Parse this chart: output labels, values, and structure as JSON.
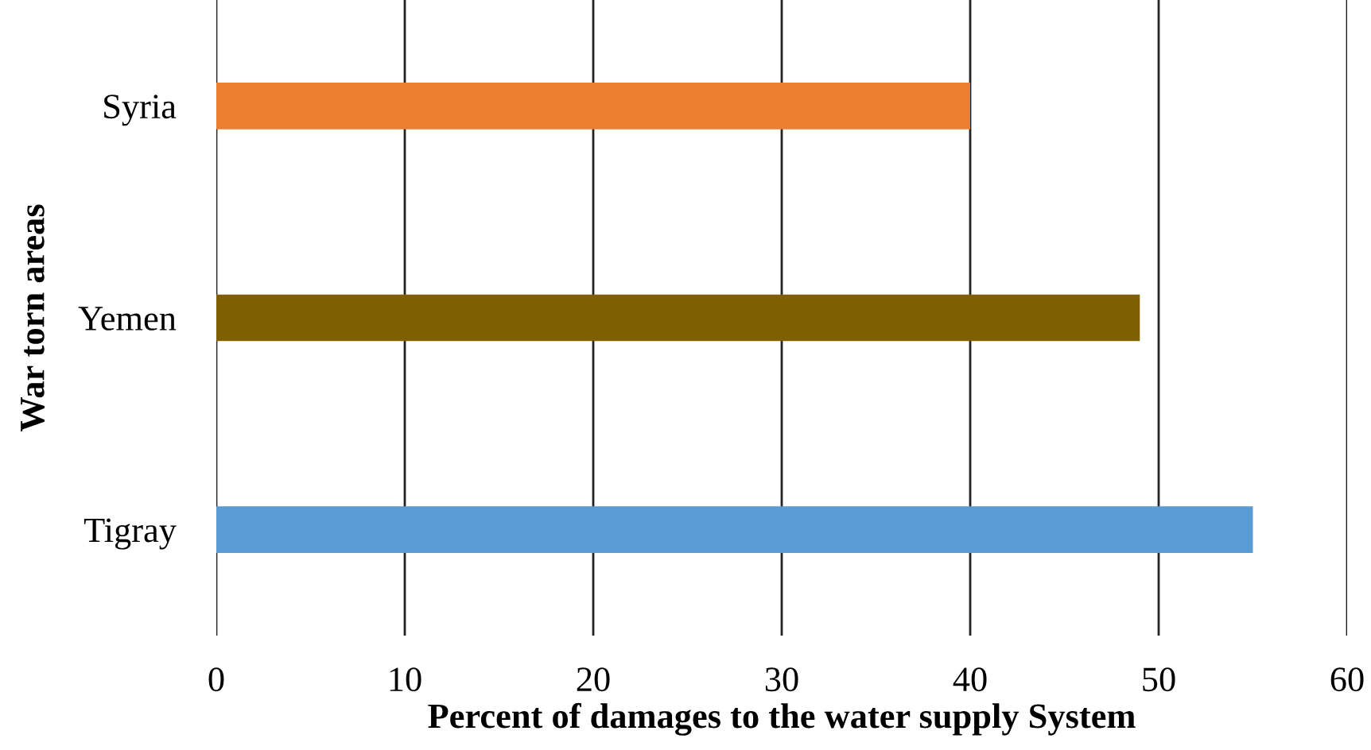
{
  "chart_data": {
    "type": "bar",
    "orientation": "horizontal",
    "categories": [
      "Syria",
      "Yemen",
      "Tigray"
    ],
    "values": [
      40,
      49,
      55
    ],
    "colors": [
      "#ed7d31",
      "#7f6000",
      "#5b9bd5"
    ],
    "xlabel": "Percent of damages to the water supply System",
    "ylabel": "War torn areas",
    "xlim": [
      0,
      60
    ],
    "xticks": [
      0,
      10,
      20,
      30,
      40,
      50,
      60
    ],
    "grid": "x"
  }
}
